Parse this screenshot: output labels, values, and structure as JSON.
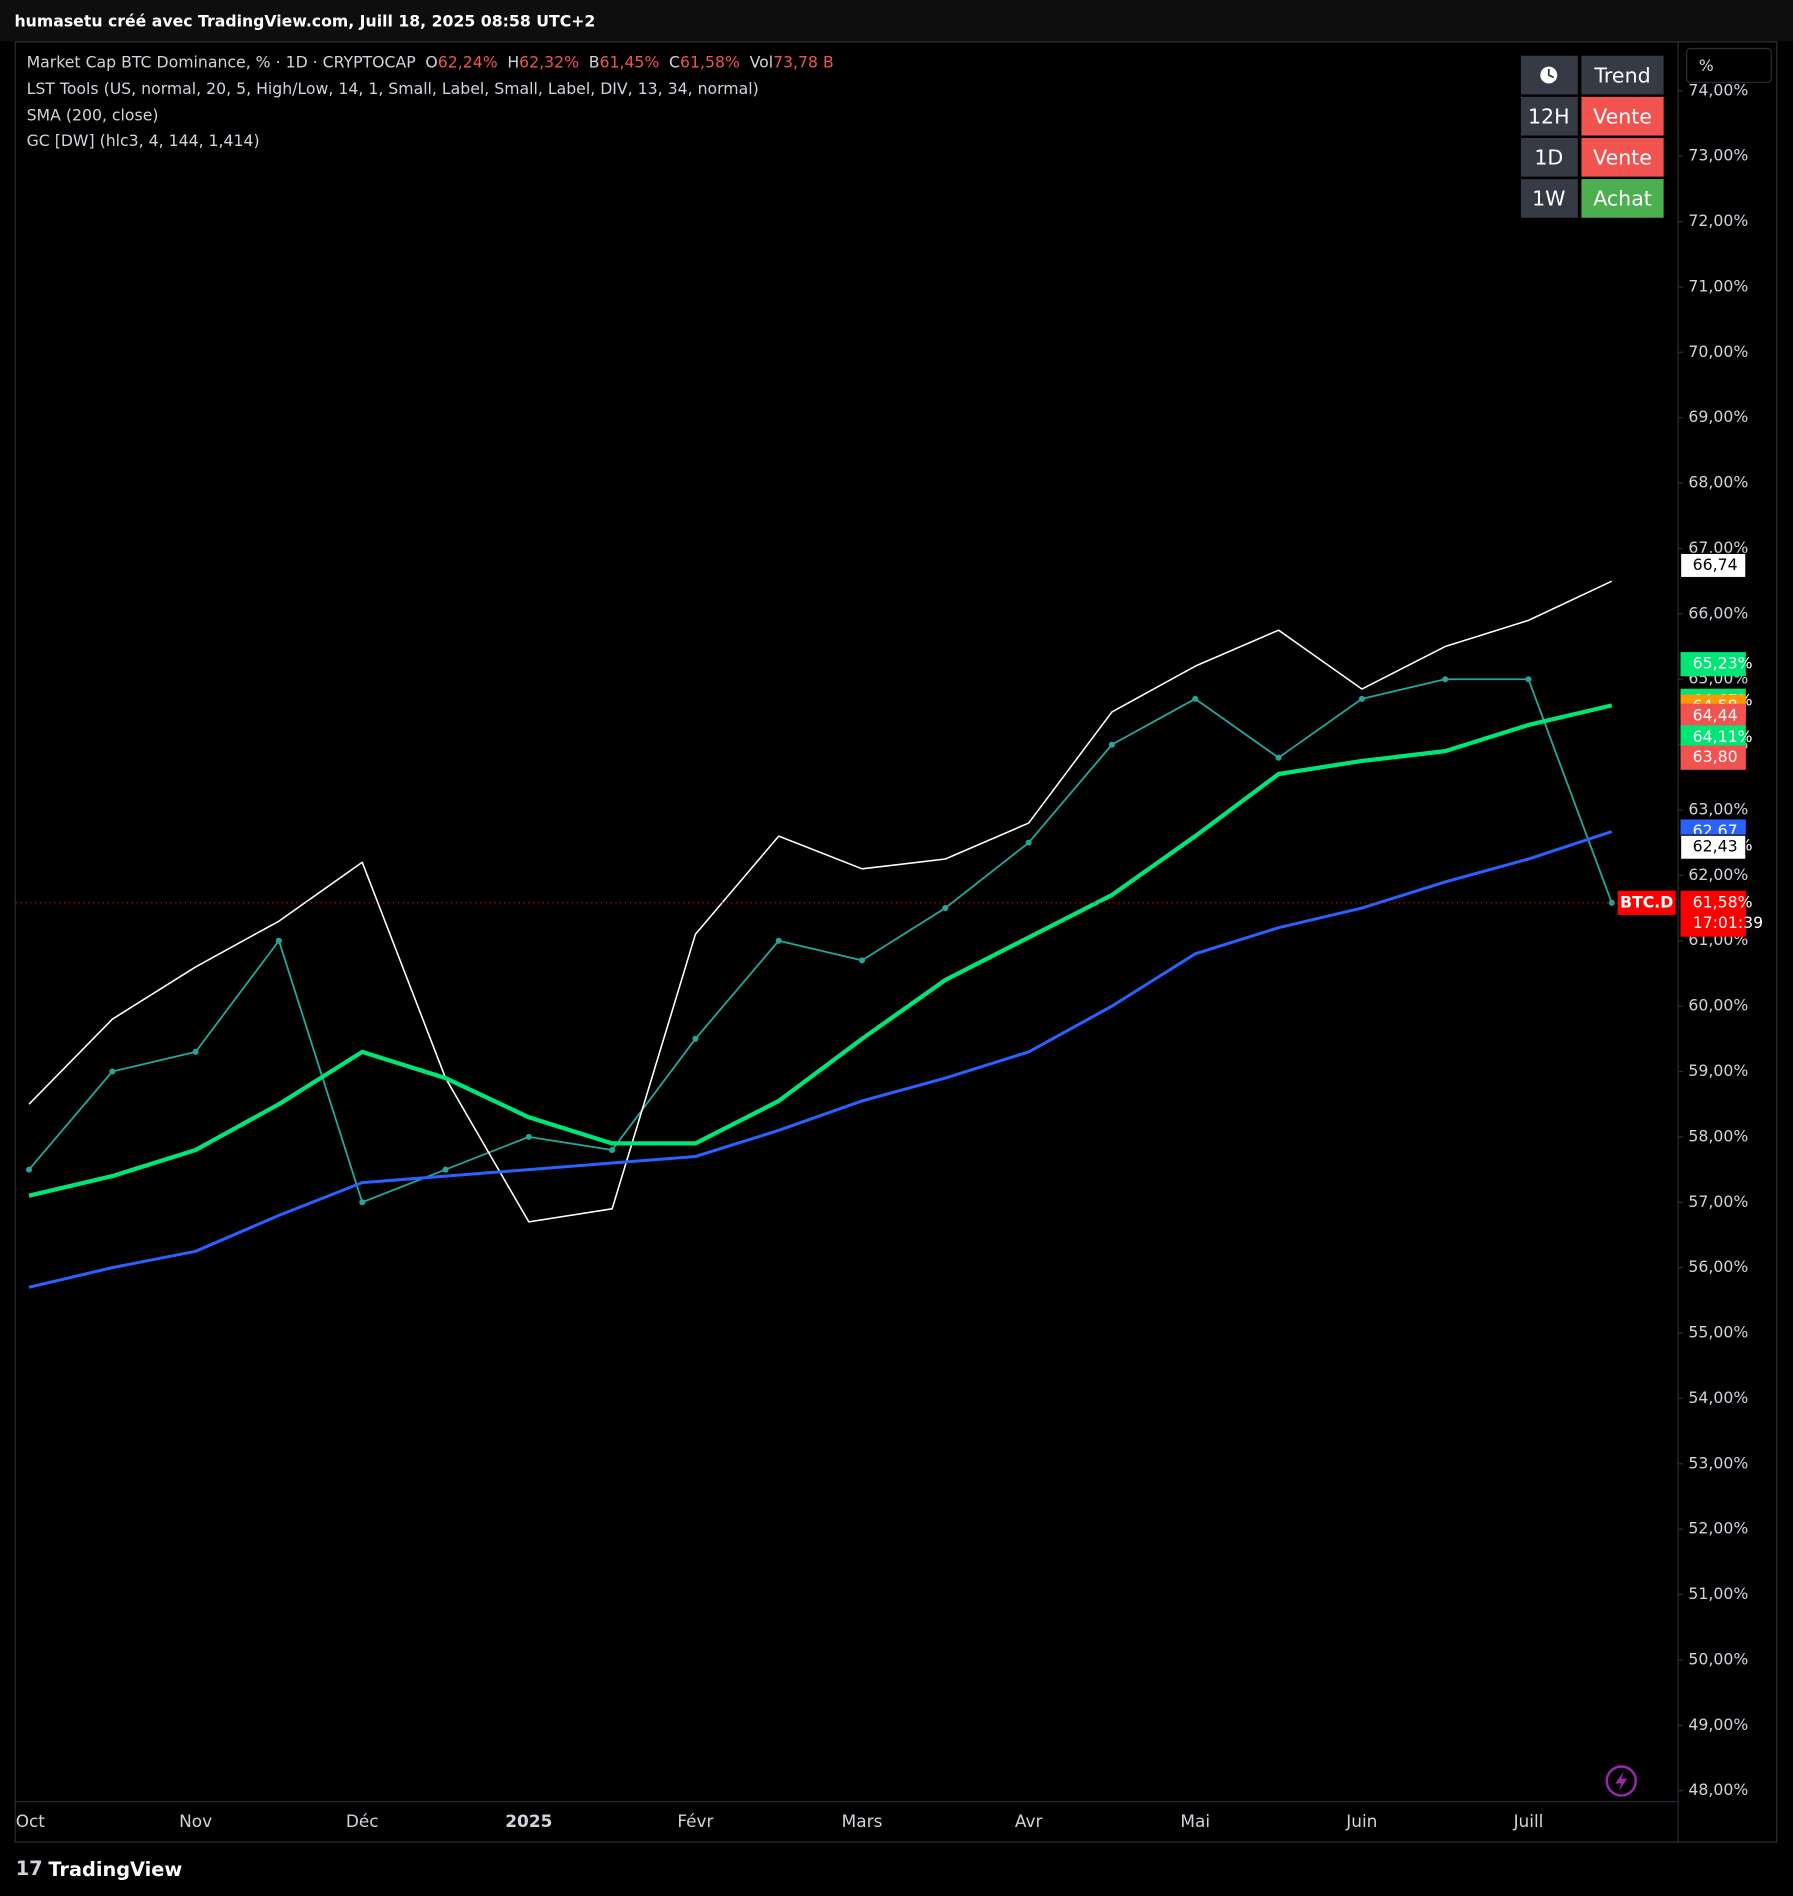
{
  "header": {
    "text": "humasetu créé avec TradingView.com, Juill 18, 2025 08:58 UTC+2"
  },
  "footer": {
    "brand": "TradingView"
  },
  "chart_data": {
    "type": "line",
    "legend": {
      "ohlc": [
        {
          "key": "O",
          "value": "62,24%"
        },
        {
          "key": "H",
          "value": "62,32%"
        },
        {
          "key": "B",
          "value": "61,45%"
        },
        {
          "key": "C",
          "value": "61,58%"
        },
        {
          "key": "Vol",
          "value": "73,78 B"
        }
      ]
    },
    "categories": [
      "Oct",
      null,
      "Nov",
      null,
      "Déc",
      null,
      "2025",
      null,
      "Févr",
      null,
      "Mars",
      null,
      "Avr",
      null,
      "Mai",
      null,
      "Juin",
      null,
      "Juill",
      null
    ],
    "series": [
      {
        "name": "Market Cap BTC Dominance, % · 1D · CRYPTOCAP",
        "color": "#26a69a",
        "values": [
          57.5,
          59.0,
          59.3,
          61.0,
          57.0,
          57.5,
          58.0,
          57.8,
          59.5,
          61.0,
          60.7,
          61.5,
          62.5,
          64.0,
          64.7,
          63.8,
          64.7,
          65.0,
          65.0,
          61.58
        ]
      },
      {
        "name": "LST Tools (US, normal, 20, 5, High/Low, 14, 1, Small, Label, Small, Label, DIV, 13, 34, normal)",
        "color": "#ffffff",
        "values": [
          58.5,
          59.8,
          60.6,
          61.3,
          62.2,
          58.9,
          56.7,
          56.9,
          61.1,
          62.6,
          62.1,
          62.25,
          62.8,
          64.5,
          65.2,
          65.75,
          64.85,
          65.5,
          65.9,
          66.5
        ]
      },
      {
        "name": "SMA (200, close)",
        "color": "#2962ff",
        "values": [
          55.7,
          56.0,
          56.25,
          56.8,
          57.3,
          57.4,
          57.5,
          57.6,
          57.7,
          58.1,
          58.55,
          58.9,
          59.3,
          60.0,
          60.8,
          61.2,
          61.5,
          61.9,
          62.25,
          62.67
        ]
      },
      {
        "name": "GC [DW] (hlc3, 4, 144, 1,414)",
        "color": "#00e676",
        "values": [
          57.1,
          57.4,
          57.8,
          58.5,
          59.3,
          58.9,
          58.3,
          57.9,
          57.9,
          58.55,
          59.5,
          60.4,
          61.05,
          61.7,
          62.6,
          63.55,
          63.75,
          63.9,
          64.3,
          64.6
        ]
      }
    ],
    "ylim": [
      48,
      74
    ],
    "yticks": [
      {
        "value": 48,
        "label": "48,00%"
      },
      {
        "value": 49,
        "label": "49,00%"
      },
      {
        "value": 50,
        "label": "50,00%"
      },
      {
        "value": 51,
        "label": "51,00%"
      },
      {
        "value": 52,
        "label": "52,00%"
      },
      {
        "value": 53,
        "label": "53,00%"
      },
      {
        "value": 54,
        "label": "54,00%"
      },
      {
        "value": 55,
        "label": "55,00%"
      },
      {
        "value": 56,
        "label": "56,00%"
      },
      {
        "value": 57,
        "label": "57,00%"
      },
      {
        "value": 58,
        "label": "58,00%"
      },
      {
        "value": 59,
        "label": "59,00%"
      },
      {
        "value": 60,
        "label": "60,00%"
      },
      {
        "value": 61,
        "label": "61,00%"
      },
      {
        "value": 62,
        "label": "62,00%"
      },
      {
        "value": 63,
        "label": "63,00%"
      },
      {
        "value": 64,
        "label": "64,00%"
      },
      {
        "value": 65,
        "label": "65,00%"
      },
      {
        "value": 66,
        "label": "66,00%"
      },
      {
        "value": 67,
        "label": "67,00%"
      },
      {
        "value": 68,
        "label": "68,00%"
      },
      {
        "value": 69,
        "label": "69,00%"
      },
      {
        "value": 70,
        "label": "70,00%"
      },
      {
        "value": 71,
        "label": "71,00%"
      },
      {
        "value": 72,
        "label": "72,00%"
      },
      {
        "value": 73,
        "label": "73,00%"
      },
      {
        "value": 74,
        "label": "74,00%"
      }
    ],
    "price_labels": [
      {
        "value": 66.74,
        "label": "66,74",
        "color": "#ffffff"
      },
      {
        "value": 65.23,
        "label": "65,23%",
        "color": "#00e676"
      },
      {
        "value": 64.67,
        "label": "64,67%",
        "color": "#00e676"
      },
      {
        "value": 64.58,
        "label": "64,58",
        "color": "#ff9800"
      },
      {
        "value": 64.44,
        "label": "64,44",
        "color": "#f05350"
      },
      {
        "value": 64.11,
        "label": "64,11%",
        "color": "#00e676"
      },
      {
        "value": 63.8,
        "label": "63,80",
        "color": "#f05350"
      },
      {
        "value": 62.67,
        "label": "62,67",
        "color": "#2962ff"
      },
      {
        "value": 62.45,
        "label": "62,45%",
        "color": "#2962ff"
      },
      {
        "value": 62.43,
        "label": "62,43",
        "color": "#ffffff"
      },
      {
        "value": 61.58,
        "label": "61,58%",
        "color": "#ff0000"
      }
    ],
    "countdown": "17:01:39",
    "symbol": "BTC.D",
    "scale_mode": "%"
  },
  "trend_table": {
    "header": "Trend",
    "rows": [
      {
        "tf": "12H",
        "signal": "Vente",
        "color": "#f05350"
      },
      {
        "tf": "1D",
        "signal": "Vente",
        "color": "#f05350"
      },
      {
        "tf": "1W",
        "signal": "Achat",
        "color": "#4caf50"
      }
    ]
  }
}
